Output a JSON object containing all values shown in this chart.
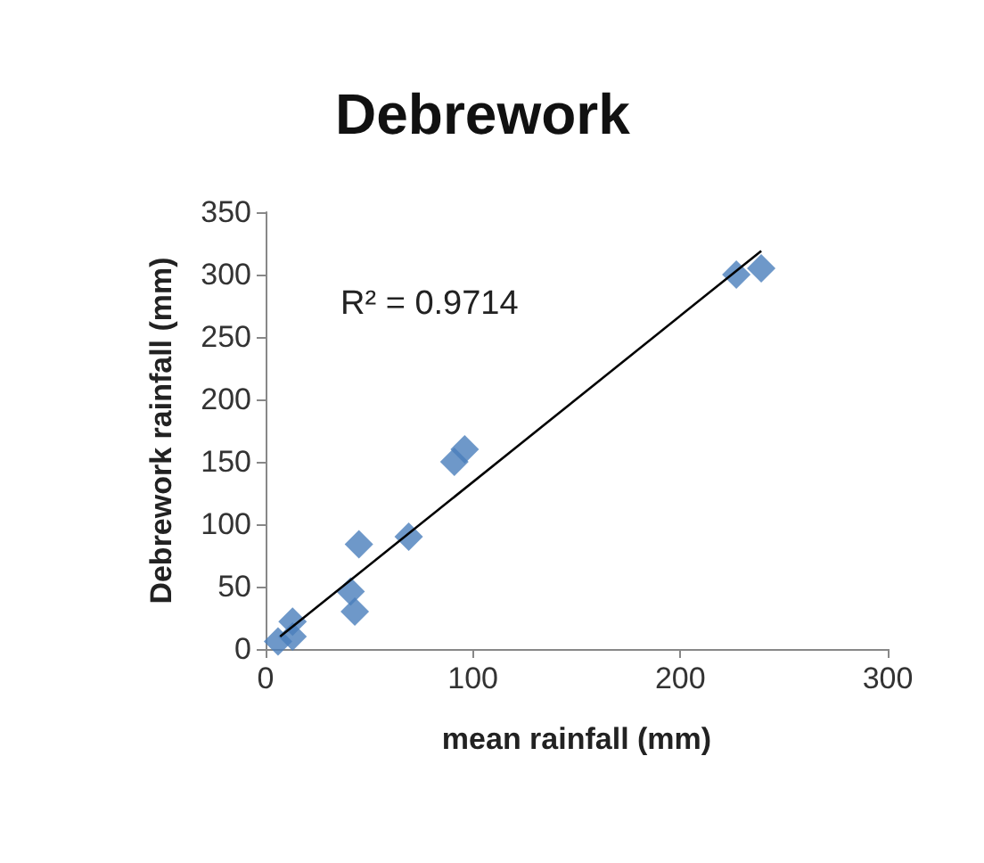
{
  "chart_data": {
    "type": "scatter",
    "title": "Debrework",
    "xlabel": "mean rainfall (mm)",
    "ylabel": "Debrework rainfall (mm)",
    "series": [
      {
        "color": "#4a7ebb",
        "x": [
          6,
          13,
          13,
          41,
          43,
          45,
          69,
          91,
          96,
          227,
          239
        ],
        "values": [
          6,
          10,
          22,
          46,
          30,
          84,
          90,
          150,
          160,
          300,
          305
        ]
      },
      {
        "type": "line",
        "color": "#000000",
        "marker": "none",
        "x": [
          7,
          239
        ],
        "values": [
          10,
          319
        ]
      }
    ],
    "xlim": [
      0,
      300
    ],
    "xticks": [
      0,
      100,
      200,
      300
    ],
    "ylim": [
      0,
      350
    ],
    "yticks": [
      0,
      50,
      100,
      150,
      200,
      250,
      300,
      350
    ],
    "annotations": [
      "R² = 0.9714"
    ],
    "marker": "diamond",
    "grid": false
  }
}
